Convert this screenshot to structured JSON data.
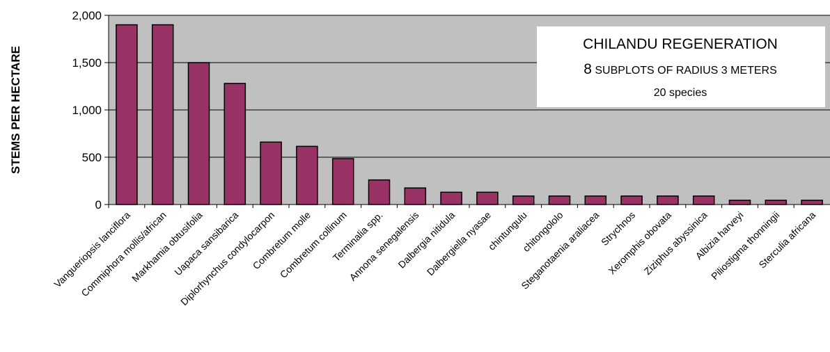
{
  "chart_data": {
    "type": "bar",
    "ylabel": "STEMS PER HECTARE",
    "xlabel": "",
    "ylim": [
      0,
      2000
    ],
    "yticks": [
      0,
      500,
      1000,
      1500,
      2000
    ],
    "ytick_labels": [
      "0",
      "500",
      "1,000",
      "1,500",
      "2,000"
    ],
    "grid": true,
    "legend_placement": "top-right",
    "bar_color": "#993366",
    "plot_background": "#c0c0c0",
    "annotation": {
      "line1": "CHILANDU REGENERATION",
      "line2_lead": "8",
      "line2_rest": " SUBPLOTS OF RADIUS 3 METERS",
      "line3": "20 species"
    },
    "categories": [
      "Vangueriopsis lanciflora",
      "Commiphora mollis/african",
      "Markhamia obtusifolia",
      "Uapaca sansibarica",
      "Diplorhynchus condylocarpon",
      "Combretum molle",
      "Combretum collinum",
      "Terminalia spp.",
      "Annona senegalensis",
      "Dalbergia nitidula",
      "Dalbergiella nyasae",
      "chintungulu",
      "chitongololo",
      "Steganotaenia araliacea",
      "Strychnos",
      "Xeromphis obovata",
      "Ziziphus abyssinica",
      "Albizia harveyi",
      "Piliostigma thonningii",
      "Sterculia africana"
    ],
    "values": [
      1900,
      1900,
      1500,
      1280,
      660,
      615,
      485,
      260,
      175,
      130,
      130,
      90,
      90,
      90,
      90,
      90,
      90,
      45,
      45,
      45
    ]
  }
}
